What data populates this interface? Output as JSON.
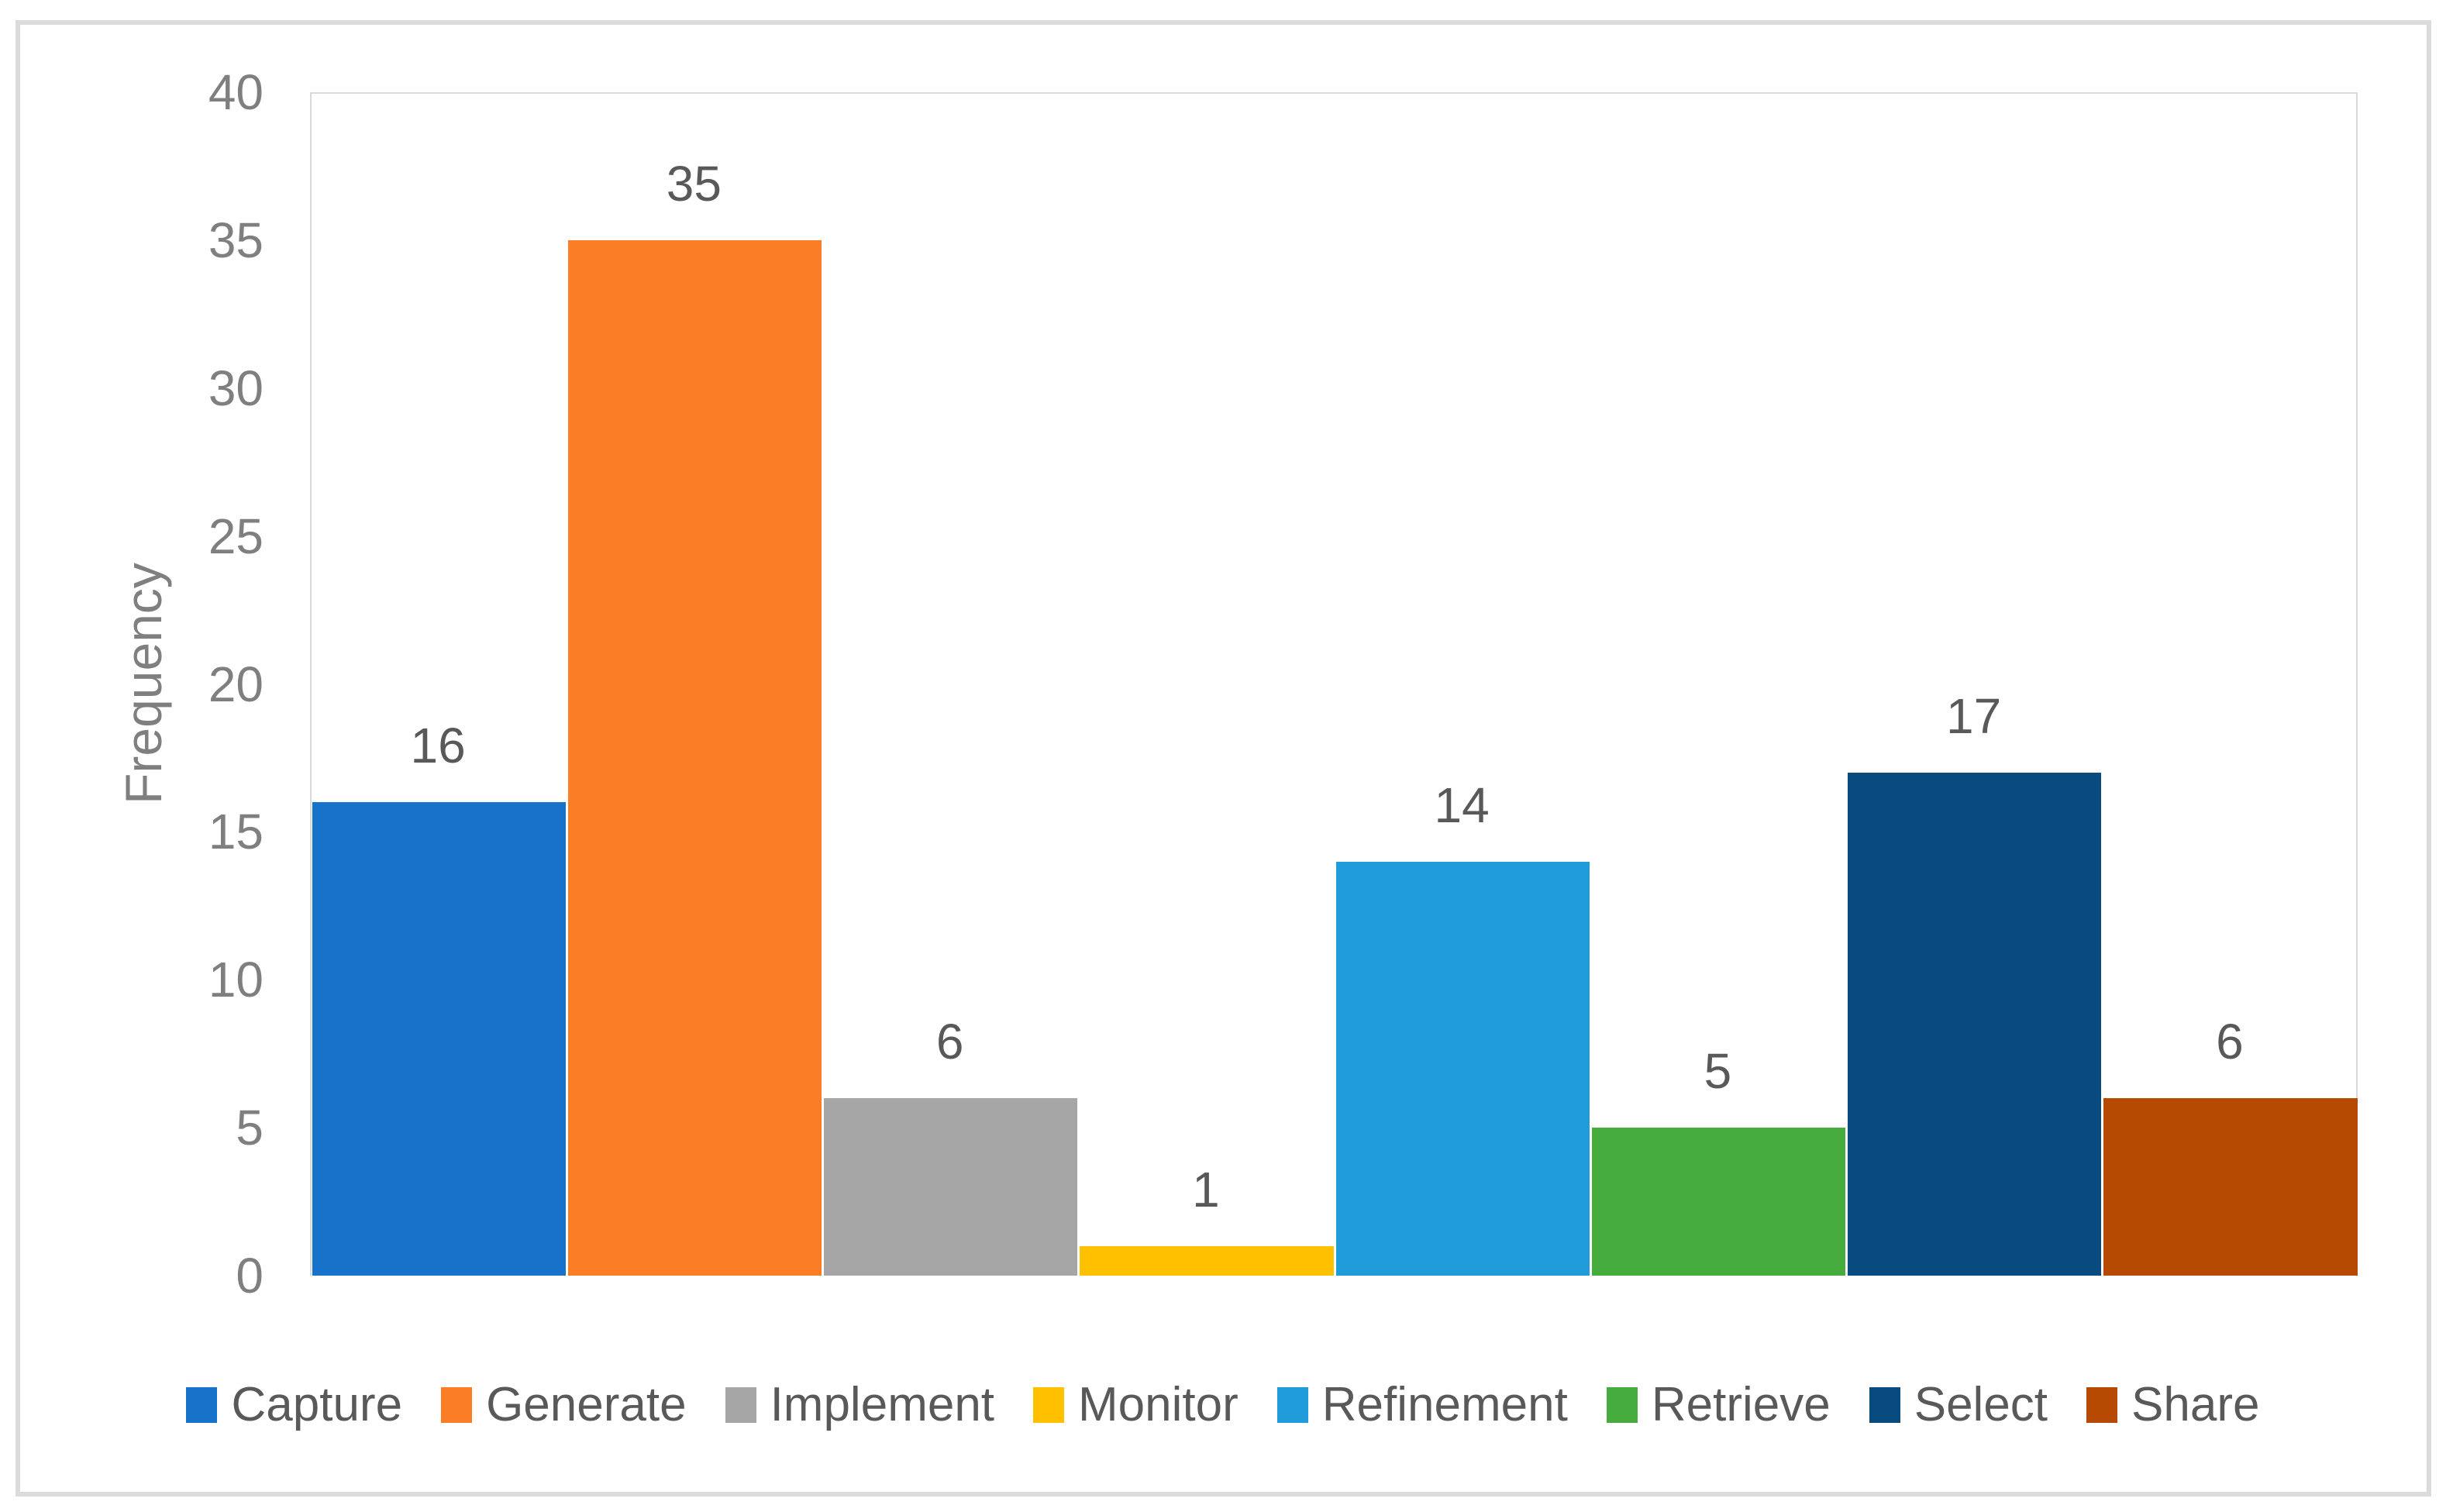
{
  "chart_data": {
    "type": "bar",
    "title": "",
    "xlabel": "",
    "ylabel": "Frequency",
    "categories": [
      "Capture",
      "Generate",
      "Implement",
      "Monitor",
      "Refinement",
      "Retrieve",
      "Select",
      "Share"
    ],
    "values": [
      16,
      35,
      6,
      1,
      14,
      5,
      17,
      6
    ],
    "data_labels": [
      "16",
      "35",
      "6",
      "1",
      "14",
      "5",
      "17",
      "6"
    ],
    "colors": [
      "#1773C9",
      "#FB7D26",
      "#A6A6A6",
      "#FFC000",
      "#1F9CD9",
      "#46AC3E",
      "#084B7F",
      "#B64A02"
    ],
    "ylim": [
      0,
      40
    ],
    "yticks": [
      0,
      5,
      10,
      15,
      20,
      25,
      30,
      35,
      40
    ],
    "grid": false,
    "legend_position": "bottom",
    "legend_entries": [
      "Capture",
      "Generate",
      "Implement",
      "Monitor",
      "Refinement",
      "Retrieve",
      "Select",
      "Share"
    ]
  },
  "style_colors": {
    "background": "#FFFFFF",
    "outer_frame": "#DBDBDB",
    "plot_border": "#D9D9D9",
    "tick_label": "#7F7F7F",
    "data_label": "#595959",
    "legend_text": "#595959"
  }
}
